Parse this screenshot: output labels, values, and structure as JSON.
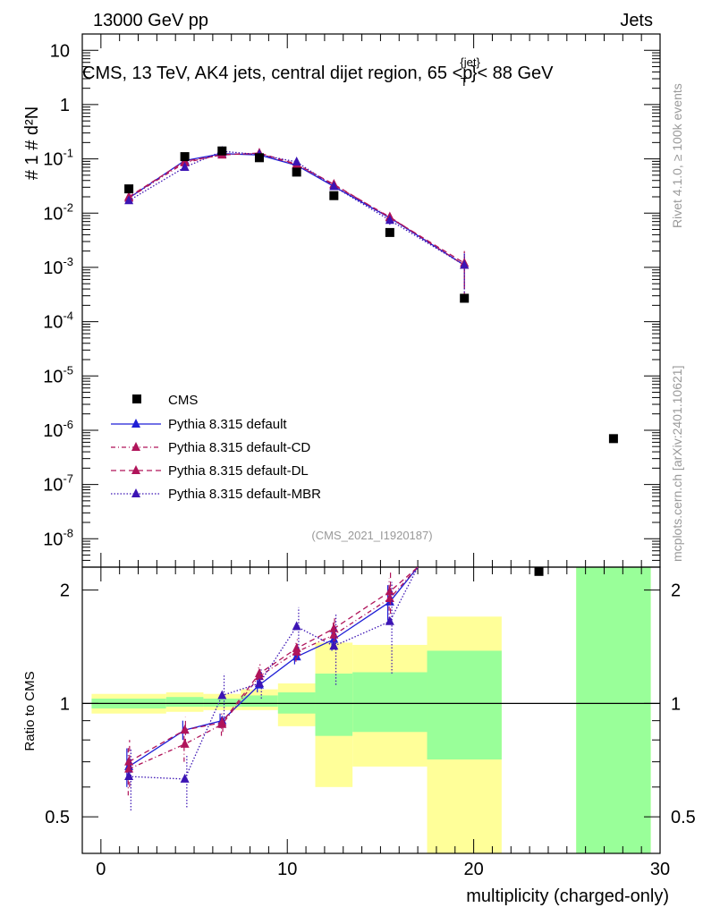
{
  "header": {
    "left": "13000 GeV pp",
    "right": "Jets"
  },
  "chart_data": {
    "type": "line",
    "title": "CMS, 13 TeV, AK4 jets, central dijet region, 65 <p",
    "title_sup": "{jet}",
    "title_sub": "T",
    "title_end": "}< 88 GeV",
    "xlabel": "multiplicity (charged-only)",
    "xlim": [
      -1,
      30
    ],
    "x_ticks": [
      0,
      10,
      20,
      30
    ],
    "x_tick_labels": [
      "0",
      "10",
      "20",
      "30"
    ],
    "ylabel_main": "#   1   #   d²N",
    "ylim_main": [
      3e-09,
      20
    ],
    "y_ticks_main": [
      1e-08,
      1e-07,
      1e-06,
      1e-05,
      0.0001,
      0.001,
      0.01,
      0.1,
      1,
      10
    ],
    "y_tick_labels_main": [
      {
        "base": "10",
        "exp": "-8"
      },
      {
        "base": "10",
        "exp": "-7"
      },
      {
        "base": "10",
        "exp": "-6"
      },
      {
        "base": "10",
        "exp": "-5"
      },
      {
        "base": "10",
        "exp": "-4"
      },
      {
        "base": "10",
        "exp": "-3"
      },
      {
        "base": "10",
        "exp": "-2"
      },
      {
        "base": "10",
        "exp": "-1"
      },
      {
        "base": "1",
        "exp": ""
      },
      {
        "base": "10",
        "exp": ""
      }
    ],
    "ylabel_ratio": "Ratio to CMS",
    "ylim_ratio": [
      0.4,
      2.3
    ],
    "y_ticks_ratio": [
      0.5,
      1,
      2
    ],
    "y_tick_labels_ratio": [
      "0.5",
      "1",
      "2"
    ],
    "side_labels": {
      "rivet": "Rivet 4.1.0, ≥ 100k events",
      "mcplots": "mcplots.cern.ch [arXiv:2401.10621]"
    },
    "analysis_id": "(CMS_2021_I1920187)",
    "cms": {
      "name": "CMS",
      "x": [
        1.5,
        4.5,
        6.5,
        8.5,
        10.5,
        12.5,
        15.5,
        19.5,
        23.5,
        27.5
      ],
      "y": [
        0.028,
        0.11,
        0.14,
        0.105,
        0.057,
        0.021,
        0.0044,
        0.00027,
        2.5e-09,
        7e-07
      ]
    },
    "bands": [
      {
        "x0": -0.5,
        "x1": 3.5,
        "y0": 0.94,
        "y1": 1.06,
        "g0": 0.97,
        "g1": 1.03
      },
      {
        "x0": 3.5,
        "x1": 5.5,
        "y0": 0.95,
        "y1": 1.07,
        "g0": 0.98,
        "g1": 1.04
      },
      {
        "x0": 5.5,
        "x1": 7.5,
        "y0": 0.96,
        "y1": 1.06,
        "g0": 0.98,
        "g1": 1.03
      },
      {
        "x0": 7.5,
        "x1": 9.5,
        "y0": 0.96,
        "y1": 1.09,
        "g0": 0.98,
        "g1": 1.05
      },
      {
        "x0": 9.5,
        "x1": 11.5,
        "y0": 0.87,
        "y1": 1.13,
        "g0": 0.94,
        "g1": 1.07
      },
      {
        "x0": 11.5,
        "x1": 13.5,
        "y0": 0.6,
        "y1": 1.45,
        "g0": 0.82,
        "g1": 1.2
      },
      {
        "x0": 13.5,
        "x1": 17.5,
        "y0": 0.68,
        "y1": 1.43,
        "g0": 0.84,
        "g1": 1.21
      },
      {
        "x0": 17.5,
        "x1": 21.5,
        "y0": 0.36,
        "y1": 1.7,
        "g0": 0.71,
        "g1": 1.38
      },
      {
        "x0": 25.5,
        "x1": 29.5,
        "y0": 0.36,
        "y1": 2.4,
        "g0": 0.36,
        "g1": 2.4
      }
    ],
    "series": [
      {
        "name": "Pythia 8.315 default",
        "color": "#1f1fd6",
        "dash": "",
        "x": [
          1.5,
          4.5,
          6.5,
          8.5,
          10.5,
          12.5,
          15.5,
          19.5
        ],
        "y": [
          0.019,
          0.093,
          0.125,
          0.118,
          0.076,
          0.031,
          0.0082,
          0.0011
        ],
        "yerr": [
          0.002,
          0.006,
          0.006,
          0.006,
          0.005,
          0.003,
          0.0012,
          0.0007
        ],
        "ratio_x": [
          1.5,
          4.5,
          6.5,
          8.5,
          10.5,
          12.5,
          15.5,
          17.0
        ],
        "ratio_y": [
          0.68,
          0.85,
          0.9,
          1.12,
          1.33,
          1.48,
          1.86,
          2.35
        ],
        "ratio_err": [
          0.08,
          0.05,
          0.04,
          0.05,
          0.06,
          0.1,
          0.2,
          0
        ]
      },
      {
        "name": "Pythia 8.315 default-CD",
        "color": "#b0145a",
        "dash": "5,3,1,3",
        "x": [
          1.5,
          4.5,
          6.5,
          8.5,
          10.5,
          12.5,
          15.5,
          19.5
        ],
        "y": [
          0.019,
          0.085,
          0.12,
          0.125,
          0.078,
          0.033,
          0.0085,
          0.0011
        ],
        "yerr": [
          0.002,
          0.006,
          0.006,
          0.006,
          0.005,
          0.003,
          0.0012,
          0.0008
        ],
        "ratio_x": [
          1.5,
          4.5,
          6.5,
          8.5,
          10.5,
          12.5,
          15.5,
          17.0
        ],
        "ratio_y": [
          0.67,
          0.78,
          0.88,
          1.18,
          1.37,
          1.52,
          1.9,
          2.35
        ],
        "ratio_err": [
          0.1,
          0.08,
          0.06,
          0.07,
          0.08,
          0.12,
          0.25,
          0
        ]
      },
      {
        "name": "Pythia 8.315 default-DL",
        "color": "#b0145a",
        "dash": "6,4",
        "x": [
          1.5,
          4.5,
          6.5,
          8.5,
          10.5,
          12.5,
          15.5,
          19.5
        ],
        "y": [
          0.02,
          0.09,
          0.118,
          0.128,
          0.08,
          0.034,
          0.0083,
          0.0012
        ],
        "yerr": [
          0.002,
          0.006,
          0.006,
          0.006,
          0.005,
          0.003,
          0.0012,
          0.0008
        ],
        "ratio_x": [
          1.5,
          4.5,
          6.5,
          8.5,
          10.5,
          12.5,
          15.5,
          17.0
        ],
        "ratio_y": [
          0.7,
          0.85,
          0.89,
          1.2,
          1.4,
          1.58,
          1.98,
          2.35
        ],
        "ratio_err": [
          0.1,
          0.07,
          0.05,
          0.07,
          0.08,
          0.12,
          0.25,
          0
        ]
      },
      {
        "name": "Pythia 8.315 default-MBR",
        "color": "#3c14b4",
        "dash": "1.5,2",
        "x": [
          1.5,
          4.5,
          6.5,
          8.5,
          10.5,
          12.5,
          15.5,
          19.5
        ],
        "y": [
          0.017,
          0.07,
          0.138,
          0.12,
          0.088,
          0.031,
          0.0074,
          0.0011
        ],
        "yerr": [
          0.002,
          0.006,
          0.007,
          0.006,
          0.006,
          0.003,
          0.0013,
          0.0008
        ],
        "ratio_x": [
          1.5,
          4.5,
          6.5,
          8.5,
          10.5,
          12.5,
          15.5,
          17.0
        ],
        "ratio_y": [
          0.64,
          0.63,
          1.05,
          1.13,
          1.6,
          1.42,
          1.65,
          2.35
        ],
        "ratio_err": [
          0.12,
          0.1,
          0.15,
          0.1,
          0.2,
          0.3,
          0.45,
          0
        ]
      }
    ]
  }
}
